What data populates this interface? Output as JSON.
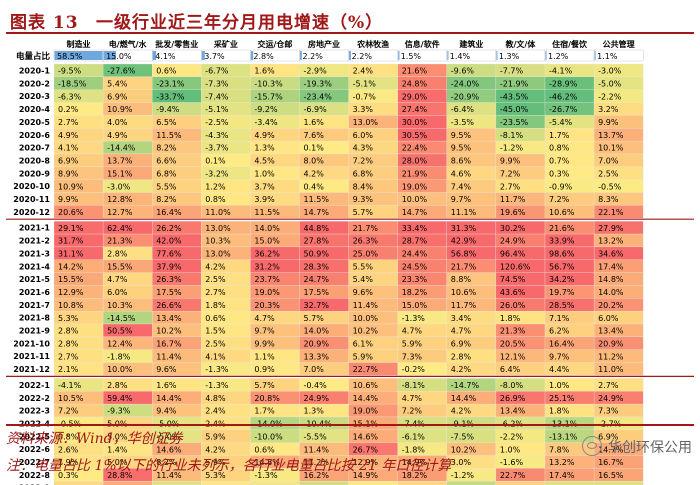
{
  "header": {
    "fig_num": "图表 13",
    "title": "一级行业近三年分月用电增速（%）"
  },
  "footer": {
    "source": "资料来源：Wind，华创证券",
    "note": "注：电量占比 1%以下的行业未列示，各行业电量占比按 21 年口径计算",
    "watermark": "华创环保公用"
  },
  "colors": {
    "title": "#a01818",
    "share_bar": "#6fa8dc",
    "low": "#63be7b",
    "mid": "#ffeb84",
    "high": "#f8696b"
  },
  "chart_data": {
    "type": "heatmap",
    "title": "一级行业近三年分月用电增速（%）",
    "share_row_label": "电量占比",
    "columns": [
      "制造业",
      "电/燃气/水",
      "批发/零售业",
      "采矿业",
      "交运/仓邮",
      "房地产业",
      "农林牧渔",
      "信息/软件",
      "建筑业",
      "教/文/体",
      "住宿/餐饮",
      "公共管理"
    ],
    "share": [
      "58.5%",
      "15.0%",
      "4.1%",
      "3.7%",
      "2.8%",
      "2.2%",
      "2.2%",
      "1.5%",
      "1.4%",
      "1.3%",
      "1.2%",
      "1.1%"
    ],
    "share_values": [
      58.5,
      15.0,
      4.1,
      3.7,
      2.8,
      2.2,
      2.2,
      1.5,
      1.4,
      1.3,
      1.2,
      1.1
    ],
    "color_scale": {
      "min": -30,
      "mid": 0,
      "max": 30
    },
    "groups": [
      {
        "rows": [
          {
            "label": "2020-1",
            "values": [
              -9.5,
              -27.6,
              0.6,
              -6.7,
              1.6,
              -2.9,
              2.4,
              21.6,
              -9.6,
              -7.7,
              -4.1,
              -3.0
            ]
          },
          {
            "label": "2020-2",
            "values": [
              -18.5,
              5.4,
              -23.1,
              -7.3,
              -10.3,
              -19.3,
              -5.1,
              24.8,
              -24.0,
              -21.9,
              -28.9,
              -5.0
            ]
          },
          {
            "label": "2020-3",
            "values": [
              -6.3,
              6.9,
              -33.7,
              -7.4,
              -15.7,
              -23.4,
              -0.7,
              29.0,
              -20.9,
              -43.5,
              -46.2,
              -2.2
            ]
          },
          {
            "label": "2020-4",
            "values": [
              0.2,
              10.9,
              -9.4,
              -5.1,
              -9.2,
              -6.9,
              3.3,
              27.4,
              -6.4,
              -45.0,
              -26.7,
              3.2
            ]
          },
          {
            "label": "2020-5",
            "values": [
              2.7,
              4.0,
              6.5,
              -2.5,
              -3.4,
              1.6,
              13.0,
              30.0,
              -3.5,
              -23.5,
              -5.4,
              9.9
            ]
          },
          {
            "label": "2020-6",
            "values": [
              4.9,
              4.9,
              11.5,
              -4.3,
              4.9,
              7.6,
              6.0,
              30.5,
              9.5,
              -8.1,
              1.7,
              13.7
            ]
          },
          {
            "label": "2020-7",
            "values": [
              4.1,
              -14.4,
              8.2,
              -3.7,
              1.3,
              0.1,
              4.3,
              22.4,
              9.5,
              -1.2,
              0.8,
              10.1
            ]
          },
          {
            "label": "2020-8",
            "values": [
              6.9,
              13.7,
              6.6,
              0.1,
              4.5,
              8.0,
              7.2,
              28.0,
              8.6,
              9.9,
              0.7,
              7.0
            ]
          },
          {
            "label": "2020-9",
            "values": [
              8.9,
              15.1,
              6.8,
              -3.2,
              1.0,
              4.2,
              6.8,
              21.9,
              4.6,
              7.2,
              0.3,
              2.5
            ]
          },
          {
            "label": "2020-10",
            "values": [
              10.9,
              -3.0,
              5.5,
              1.2,
              3.7,
              0.4,
              8.4,
              19.0,
              7.4,
              2.7,
              -0.9,
              -0.5
            ]
          },
          {
            "label": "2020-11",
            "values": [
              9.9,
              12.8,
              8.2,
              0.8,
              3.9,
              11.5,
              9.3,
              10.0,
              9.7,
              11.7,
              7.2,
              8.3
            ]
          },
          {
            "label": "2020-12",
            "values": [
              20.6,
              12.7,
              16.4,
              11.0,
              11.5,
              14.7,
              5.7,
              14.7,
              11.1,
              19.6,
              10.6,
              22.1
            ]
          }
        ]
      },
      {
        "rows": [
          {
            "label": "2021-1",
            "values": [
              29.1,
              62.4,
              26.2,
              13.0,
              14.0,
              44.8,
              21.7,
              33.4,
              31.3,
              30.2,
              21.6,
              27.9
            ]
          },
          {
            "label": "2021-2",
            "values": [
              31.7,
              21.3,
              42.0,
              10.3,
              15.0,
              27.8,
              26.3,
              28.7,
              42.9,
              24.9,
              33.9,
              13.2
            ]
          },
          {
            "label": "2021-3",
            "values": [
              31.1,
              2.8,
              77.6,
              13.0,
              36.2,
              50.9,
              25.0,
              24.4,
              56.8,
              96.4,
              98.6,
              34.6
            ]
          },
          {
            "label": "2021-4",
            "values": [
              14.2,
              15.5,
              37.9,
              4.2,
              31.2,
              28.3,
              5.5,
              24.5,
              21.7,
              120.6,
              56.7,
              17.4
            ]
          },
          {
            "label": "2021-5",
            "values": [
              15.5,
              4.7,
              26.3,
              2.5,
              23.7,
              24.7,
              5.4,
              23.3,
              8.8,
              74.5,
              34.2,
              14.8
            ]
          },
          {
            "label": "2021-6",
            "values": [
              12.9,
              6.0,
              17.5,
              2.7,
              19.0,
              17.5,
              9.6,
              18.2,
              10.6,
              43.6,
              19.7,
              14.0
            ]
          },
          {
            "label": "2021-7",
            "values": [
              10.8,
              10.3,
              26.6,
              1.8,
              20.3,
              32.7,
              11.4,
              15.0,
              11.7,
              26.0,
              28.5,
              20.2
            ]
          },
          {
            "label": "2021-8",
            "values": [
              5.3,
              -14.5,
              13.4,
              0.6,
              4.7,
              5.7,
              10.0,
              -1.3,
              3.4,
              1.8,
              7.1,
              6.0
            ]
          },
          {
            "label": "2021-9",
            "values": [
              2.8,
              50.5,
              10.2,
              1.5,
              9.7,
              14.0,
              10.2,
              4.7,
              4.7,
              21.3,
              6.2,
              13.4
            ]
          },
          {
            "label": "2021-10",
            "values": [
              2.8,
              12.4,
              16.7,
              2.5,
              9.9,
              20.9,
              6.1,
              5.9,
              6.9,
              20.5,
              16.4,
              20.9
            ]
          },
          {
            "label": "2021-11",
            "values": [
              2.7,
              -1.8,
              11.4,
              4.1,
              1.1,
              13.3,
              5.9,
              7.3,
              2.8,
              12.1,
              9.7,
              11.2
            ]
          },
          {
            "label": "2021-12",
            "values": [
              2.1,
              10.0,
              9.6,
              -1.3,
              0.9,
              7.0,
              22.7,
              -0.2,
              4.2,
              6.4,
              4.4,
              11.0
            ]
          }
        ]
      },
      {
        "rows": [
          {
            "label": "2022-1",
            "values": [
              -4.1,
              2.8,
              1.6,
              -1.3,
              5.7,
              -0.4,
              10.6,
              -8.1,
              -14.7,
              -8.0,
              1.0,
              2.7
            ]
          },
          {
            "label": "2022-2",
            "values": [
              10.5,
              59.4,
              14.4,
              4.8,
              20.8,
              24.9,
              14.4,
              4.7,
              14.4,
              26.9,
              25.1,
              24.9
            ]
          },
          {
            "label": "2022-3",
            "values": [
              7.2,
              -9.3,
              9.4,
              2.4,
              1.7,
              1.3,
              19.0,
              7.2,
              4.2,
              13.4,
              1.8,
              7.3
            ]
          },
          {
            "label": "2022-4",
            "values": [
              -0.5,
              5.0,
              -5.0,
              2.4,
              -14.0,
              -10.4,
              15.1,
              -7.4,
              -9.1,
              -6.2,
              -13.1,
              -2.7
            ]
          },
          {
            "label": "2022-5",
            "values": [
              0.8,
              5.0,
              -5.0,
              5.9,
              -10.0,
              -5.5,
              14.6,
              -6.1,
              -7.5,
              -2.2,
              -13.1,
              6.9
            ]
          },
          {
            "label": "2022-6",
            "values": [
              2.6,
              1.4,
              14.6,
              4.2,
              0.6,
              11.4,
              26.7,
              -1.8,
              10.2,
              1.0,
              7.8,
              14.7
            ]
          },
          {
            "label": "2022-7",
            "values": [
              1.9,
              5.0,
              8.2,
              5.9,
              14.8,
              11.2,
              12.9,
              14.9,
              3.0,
              -1.6,
              13.2,
              16.7
            ]
          },
          {
            "label": "2022-8",
            "values": [
              0.3,
              28.8,
              11.4,
              5.3,
              -1.3,
              16.2,
              14.9,
              18.2,
              -1.2,
              22.7,
              17.4,
              16.5
            ]
          },
          {
            "label": "2022-9",
            "values": [
              3.8,
              14.3,
              -6.1,
              0.8,
              -2.4,
              -8.7,
              -0.8,
              4.6,
              -11.1,
              5.8,
              -6.1,
              -6.5
            ]
          }
        ]
      }
    ]
  }
}
